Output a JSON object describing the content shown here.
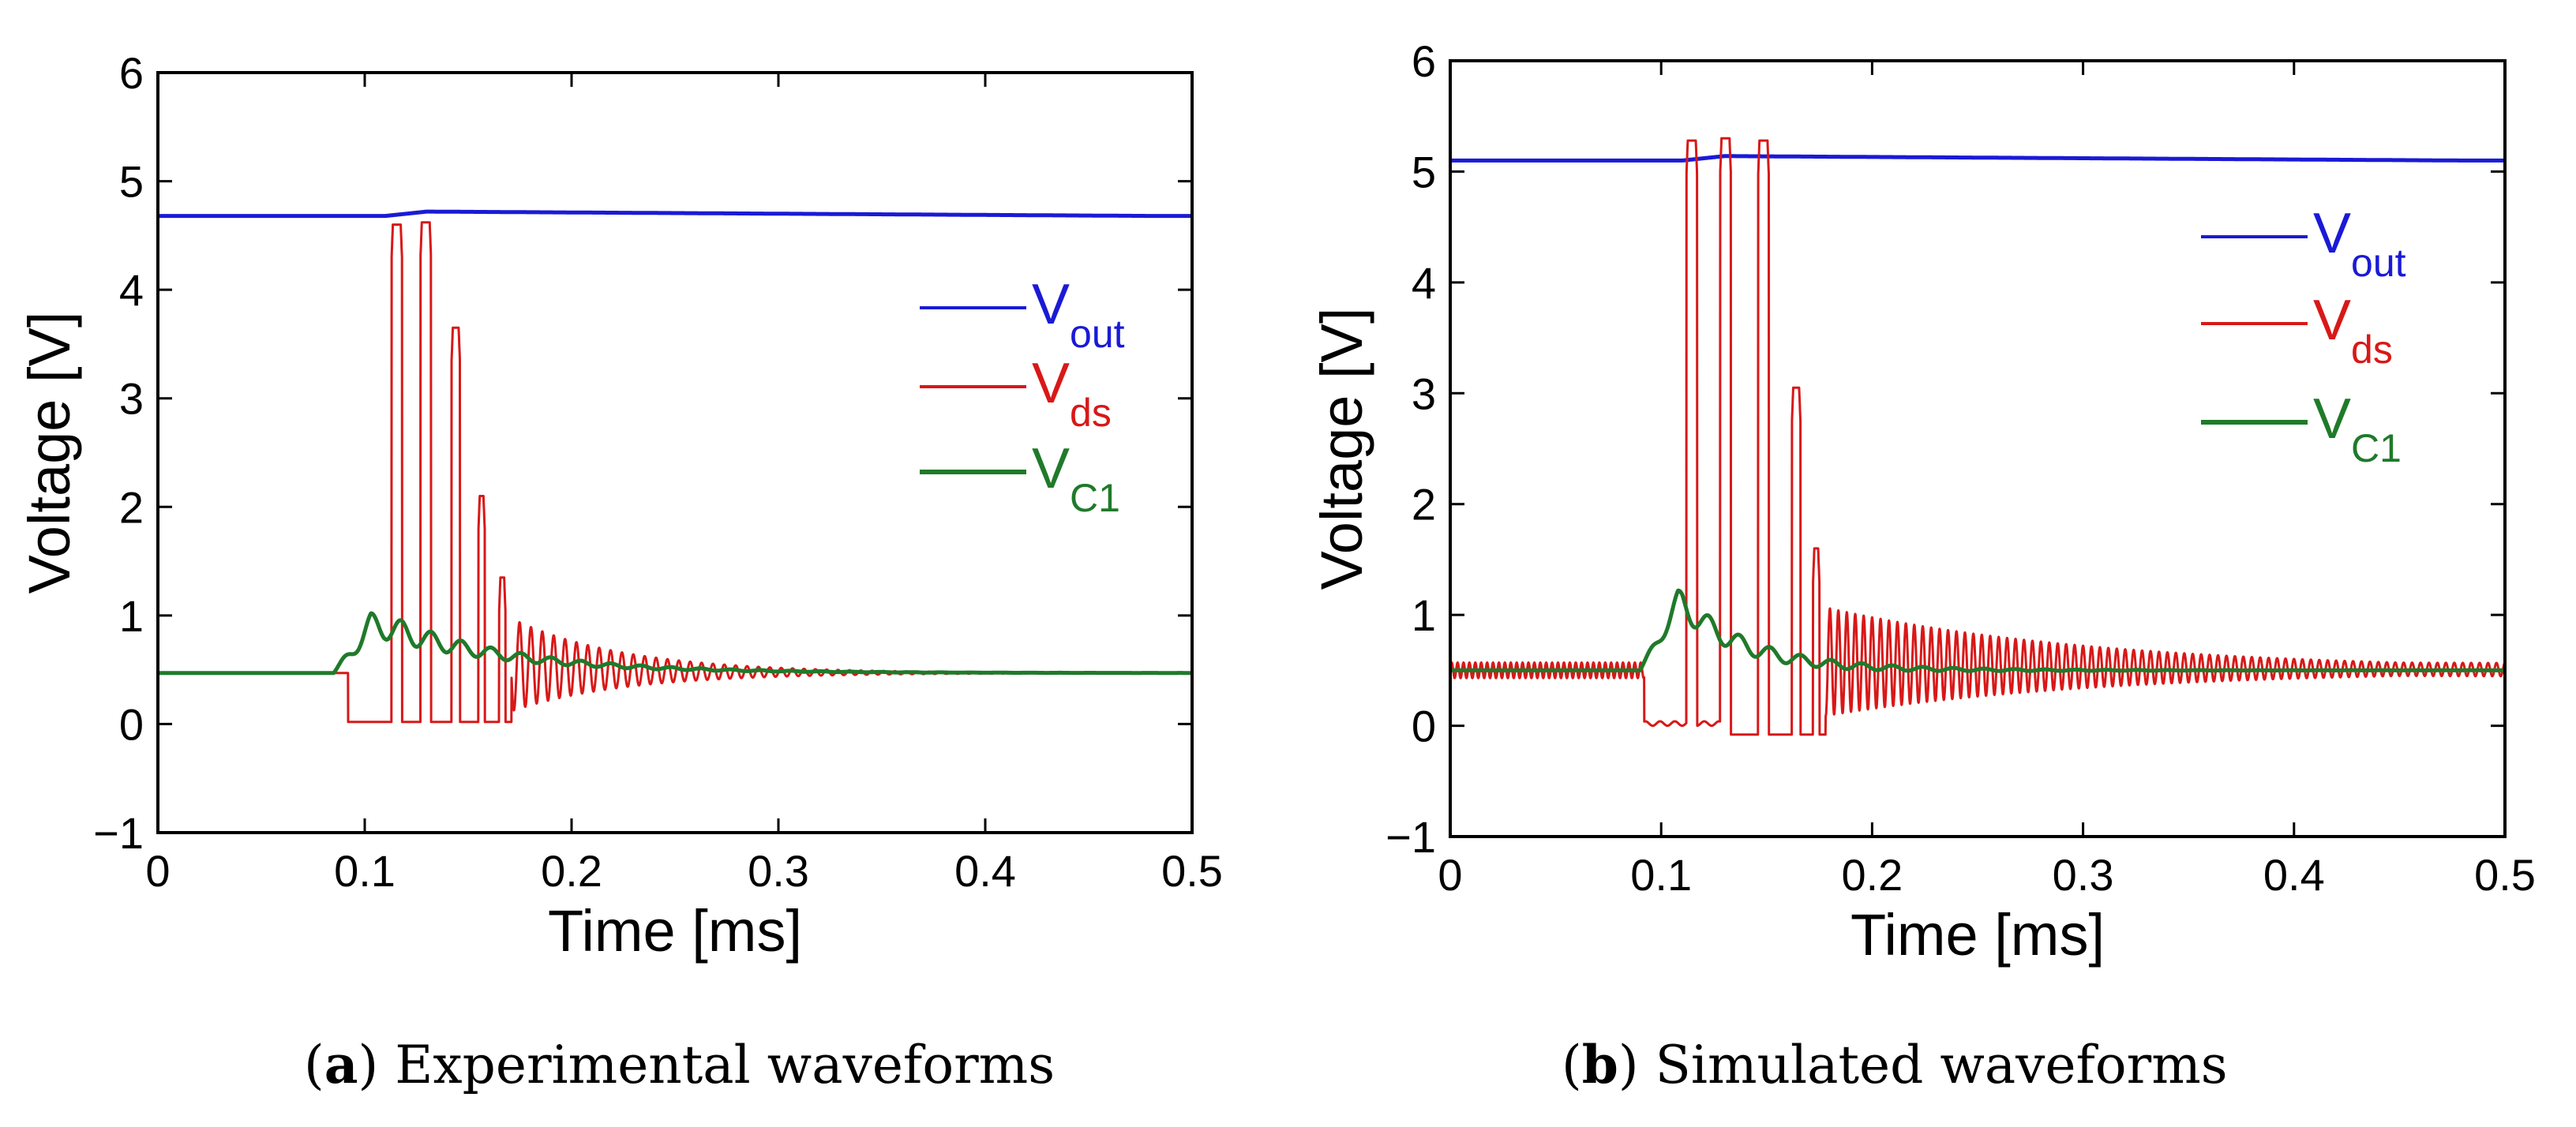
{
  "figure": {
    "panels": [
      {
        "letter": "a",
        "caption": "Experimental waveforms"
      },
      {
        "letter": "b",
        "caption": "Simulated waveforms"
      }
    ]
  },
  "colors": {
    "vout": "#1a1ad6",
    "vds": "#d81818",
    "vc1": "#1f7a2a",
    "axis": "#000000"
  },
  "chart_data": [
    {
      "type": "line",
      "panel": "a",
      "title": "",
      "xlabel": "Time [ms]",
      "ylabel": "Voltage [V]",
      "xlim": [
        0,
        0.5
      ],
      "ylim": [
        -1,
        6
      ],
      "xticks": [
        0,
        0.1,
        0.2,
        0.3,
        0.4,
        0.5
      ],
      "xtick_labels": [
        "0",
        "0.1",
        "0.2",
        "0.3",
        "0.4",
        "0.5"
      ],
      "yticks": [
        -1,
        0,
        1,
        2,
        3,
        4,
        5,
        6
      ],
      "ytick_labels": [
        "−1",
        "0",
        "1",
        "2",
        "3",
        "4",
        "5",
        "6"
      ],
      "grid": false,
      "legend_position": "right",
      "series": [
        {
          "name": "V",
          "sub": "out",
          "color": "#1a1ad6",
          "kind": "vout",
          "baseline": 4.68,
          "peak": 4.72
        },
        {
          "name": "V",
          "sub": "ds",
          "color": "#d81818",
          "kind": "vds",
          "baseline": 0.47,
          "ring_amplitude": 0.9,
          "ring_period": 0.0055,
          "pulses": [
            [
              0.113,
              0.118,
              4.6
            ],
            [
              0.127,
              0.132,
              4.62
            ],
            [
              0.142,
              0.146,
              3.65
            ],
            [
              0.155,
              0.158,
              2.1
            ],
            [
              0.165,
              0.168,
              1.35
            ]
          ]
        },
        {
          "name": "V",
          "sub": "C1",
          "color": "#1f7a2a",
          "kind": "vc1",
          "baseline": 0.47,
          "peak": 0.9
        }
      ]
    },
    {
      "type": "line",
      "panel": "b",
      "title": "",
      "xlabel": "Time [ms]",
      "ylabel": "Voltage [V]",
      "xlim": [
        0,
        0.5
      ],
      "ylim": [
        -1,
        6
      ],
      "xticks": [
        0,
        0.1,
        0.2,
        0.3,
        0.4,
        0.5
      ],
      "xtick_labels": [
        "0",
        "0.1",
        "0.2",
        "0.3",
        "0.4",
        "0.5"
      ],
      "yticks": [
        -1,
        0,
        1,
        2,
        3,
        4,
        5,
        6
      ],
      "ytick_labels": [
        "−1",
        "0",
        "1",
        "2",
        "3",
        "4",
        "5",
        "6"
      ],
      "grid": false,
      "legend_position": "right",
      "series": [
        {
          "name": "V",
          "sub": "out",
          "color": "#1a1ad6",
          "kind": "vout",
          "baseline": 5.1,
          "peak": 5.14
        },
        {
          "name": "V",
          "sub": "ds",
          "color": "#d81818",
          "kind": "vds_sim",
          "baseline": 0.5,
          "ring_amplitude": 1.0,
          "ring_period": 0.004,
          "pulses": [
            [
              0.112,
              0.117,
              5.28
            ],
            [
              0.128,
              0.133,
              5.3
            ],
            [
              0.146,
              0.151,
              5.28
            ],
            [
              0.162,
              0.166,
              3.05
            ],
            [
              0.172,
              0.175,
              1.6
            ]
          ]
        },
        {
          "name": "V",
          "sub": "C1",
          "color": "#1f7a2a",
          "kind": "vc1_sim",
          "baseline": 0.5,
          "peak": 1.1
        }
      ]
    }
  ]
}
